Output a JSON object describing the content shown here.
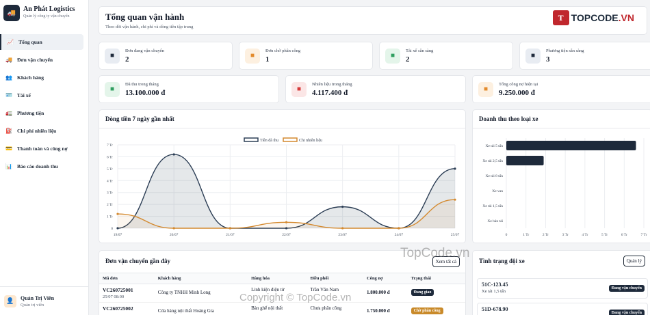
{
  "brand": {
    "name": "An Phát Logistics",
    "subtitle": "Quản lý công ty vận chuyển"
  },
  "nav": [
    {
      "label": "Tổng quan",
      "icon": "chart-line-icon",
      "glyph": "📈",
      "active": true
    },
    {
      "label": "Đơn vận chuyển",
      "icon": "truck-icon",
      "glyph": "🚚"
    },
    {
      "label": "Khách hàng",
      "icon": "users-icon",
      "glyph": "👥"
    },
    {
      "label": "Tài xế",
      "icon": "id-card-icon",
      "glyph": "🪪"
    },
    {
      "label": "Phương tiện",
      "icon": "vehicle-icon",
      "glyph": "🚛"
    },
    {
      "label": "Chi phí nhiên liệu",
      "icon": "fuel-icon",
      "glyph": "⛽"
    },
    {
      "label": "Thanh toán và công nợ",
      "icon": "payment-icon",
      "glyph": "💳"
    },
    {
      "label": "Báo cáo doanh thu",
      "icon": "report-icon",
      "glyph": "📊"
    }
  ],
  "user": {
    "name": "Quản Trị Viên",
    "role": "Quản trị viên"
  },
  "header": {
    "title": "Tổng quan vận hành",
    "subtitle": "Theo dõi vận hành, chi phí và dòng tiền tập trung"
  },
  "logo": {
    "box": "T",
    "text_a": "TOPCODE",
    "text_b": ".VN"
  },
  "stats_top": [
    {
      "label": "Đơn đang vận chuyển",
      "value": "2",
      "icon": "truck-icon",
      "color": "#1e2a3b",
      "bg": "#e8ecf2"
    },
    {
      "label": "Đơn chờ phân công",
      "value": "1",
      "icon": "box-icon",
      "color": "#e38a2b",
      "bg": "#fdf0e0"
    },
    {
      "label": "Tài xế sẵn sàng",
      "value": "2",
      "icon": "driver-icon",
      "color": "#2f9e5f",
      "bg": "#e4f5ea"
    },
    {
      "label": "Phương tiện sẵn sàng",
      "value": "3",
      "icon": "vehicle-icon",
      "color": "#1e2a3b",
      "bg": "#e8ecf2"
    }
  ],
  "stats_bottom": [
    {
      "label": "Đã thu trong tháng",
      "value": "13.100.000 đ",
      "icon": "cash-icon",
      "color": "#2f9e5f",
      "bg": "#e4f5ea"
    },
    {
      "label": "Nhiên liệu trong tháng",
      "value": "4.117.400 đ",
      "icon": "fuel-icon",
      "color": "#d63a3a",
      "bg": "#fbe6e6"
    },
    {
      "label": "Tổng công nợ hiện tại",
      "value": "9.250.000 đ",
      "icon": "invoice-icon",
      "color": "#e38a2b",
      "bg": "#fdf0e0"
    }
  ],
  "cashflow": {
    "title": "Dòng tiền 7 ngày gần nhất",
    "chart_data": {
      "type": "line",
      "x": [
        "19/07",
        "20/07",
        "21/07",
        "22/07",
        "23/07",
        "24/07",
        "25/07"
      ],
      "ylim": [
        0,
        7
      ],
      "yticks": [
        "0",
        "1 Tr",
        "2 Tr",
        "3 Tr",
        "4 Tr",
        "5 Tr",
        "6 Tr",
        "7 Tr"
      ],
      "series": [
        {
          "name": "Tiền đã thu",
          "values": [
            0,
            6.2,
            0,
            0,
            1.8,
            0,
            5.0
          ],
          "color": "#2c3e55",
          "fill": "rgba(44,62,85,0.12)"
        },
        {
          "name": "Chi nhiên liệu",
          "values": [
            1.2,
            0,
            0,
            0.5,
            0,
            0,
            2.4
          ],
          "color": "#d4892e",
          "fill": "rgba(212,137,46,0.08)"
        }
      ],
      "legend": "top-center",
      "grid": true
    }
  },
  "revenue_by_type": {
    "title": "Doanh thu theo loại xe",
    "chart_data": {
      "type": "bar",
      "orientation": "horizontal",
      "categories": [
        "Xe tải 5 tấn",
        "Xe tải 2,5 tấn",
        "Xe tải 8 tấn",
        "Xe van",
        "Xe tải 1,5 tấn",
        "Xe bán tải"
      ],
      "values": [
        6.6,
        1.9,
        0,
        0,
        0,
        0
      ],
      "xlim": [
        0,
        7
      ],
      "xticks": [
        "0",
        "1 Tr",
        "2 Tr",
        "3 Tr",
        "4 Tr",
        "5 Tr",
        "6 Tr",
        "7 Tr"
      ],
      "color": "#1e2a3b",
      "grid": true
    }
  },
  "recent_orders": {
    "title": "Đơn vận chuyển gần đây",
    "view_all": "Xem tất cả",
    "columns": [
      "Mã đơn",
      "Khách hàng",
      "Hàng hóa",
      "Điều phối",
      "Công nợ",
      "Trạng thái"
    ],
    "rows": [
      {
        "code": "VC260725001",
        "date": "25/07 08:00",
        "customer": "Công ty TNHH Minh Long",
        "goods": "Linh kiện điện tử",
        "dispatch": "Trần Văn Nam",
        "debt": "1.800.000 đ",
        "status": "Đang giao",
        "status_color": "#1e2a3b"
      },
      {
        "code": "VC260725002",
        "date": "",
        "customer": "Cửa hàng nội thất Hoàng Gia",
        "goods": "Bàn ghế nội thất",
        "dispatch": "Chưa phân công",
        "debt": "1.750.000 đ",
        "status": "Chờ phân công",
        "status_color": "#c98a2a"
      }
    ]
  },
  "fleet": {
    "title": "Tình trạng đội xe",
    "manage": "Quản lý",
    "items": [
      {
        "plate": "51C-123.45",
        "type": "Xe tải 1,5 tấn",
        "status": "Đang vận chuyển"
      },
      {
        "plate": "51D-678.90",
        "type": "",
        "status": "Đang vận chuyển"
      }
    ]
  },
  "watermark": {
    "center": "TopCode.vn",
    "bottom": "Copyright © TopCode.vn"
  }
}
